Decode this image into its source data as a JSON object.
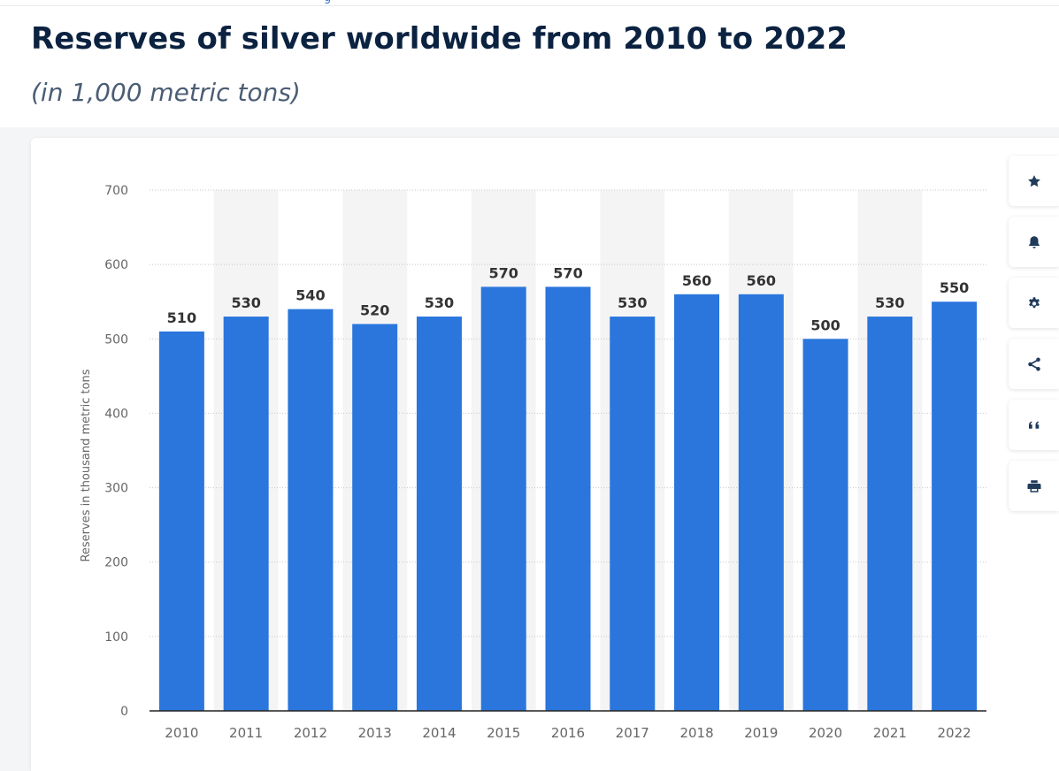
{
  "page": {
    "title": "Reserves of silver worldwide from 2010 to 2022",
    "subtitle": "(in 1,000 metric tons)",
    "top_link_fragment": "g"
  },
  "toolbar": {
    "buttons": [
      {
        "icon": "star-icon",
        "action": "favorite"
      },
      {
        "icon": "bell-icon",
        "action": "notifications"
      },
      {
        "icon": "gear-icon",
        "action": "settings"
      },
      {
        "icon": "share-icon",
        "action": "share"
      },
      {
        "icon": "quote-icon",
        "action": "cite"
      },
      {
        "icon": "print-icon",
        "action": "print"
      }
    ]
  },
  "colors": {
    "bar": "#2a76dd",
    "title": "#0b2240",
    "subtitle": "#4b5d74",
    "label": "#333333",
    "axis_text": "#666666",
    "icon": "#203a5a",
    "column_band": "#f4f4f4"
  },
  "chart_data": {
    "type": "bar",
    "title": "Reserves of silver worldwide from 2010 to 2022",
    "subtitle": "(in 1,000 metric tons)",
    "xlabel": "",
    "ylabel": "Reserves in thousand metric tons",
    "categories": [
      "2010",
      "2011",
      "2012",
      "2013",
      "2014",
      "2015",
      "2016",
      "2017",
      "2018",
      "2019",
      "2020",
      "2021",
      "2022"
    ],
    "values": [
      510,
      530,
      540,
      520,
      530,
      570,
      570,
      530,
      560,
      560,
      500,
      530,
      550
    ],
    "ylim": [
      0,
      700
    ],
    "yticks": [
      0,
      100,
      200,
      300,
      400,
      500,
      600,
      700
    ],
    "grid": true,
    "data_labels": true
  }
}
